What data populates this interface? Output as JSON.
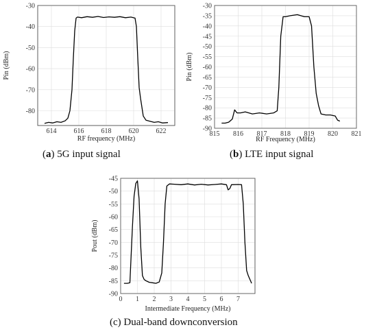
{
  "chart_data": [
    {
      "type": "line",
      "caption_id": "a",
      "caption_text": "5G input signal",
      "xlabel": "RF frequency (MHz)",
      "ylabel": "Pin (dBm)",
      "xlim": [
        613,
        623
      ],
      "ylim": [
        -87,
        -30
      ],
      "xticks": [
        614,
        616,
        618,
        620,
        622
      ],
      "yticks": [
        -80,
        -70,
        -60,
        -50,
        -40,
        -30
      ],
      "grid": true,
      "series": [
        {
          "x": [
            613.5,
            613.8,
            614.1,
            614.4,
            614.7,
            615.0,
            615.2,
            615.35,
            615.5,
            615.6,
            615.7,
            615.8,
            615.9,
            616.2,
            616.6,
            617.0,
            617.4,
            617.8,
            618.2,
            618.6,
            619.0,
            619.4,
            619.8,
            620.1,
            620.2,
            620.3,
            620.4,
            620.5,
            620.7,
            620.9,
            621.2,
            621.5,
            621.8,
            622.1,
            622.5
          ],
          "y": [
            -86,
            -85.5,
            -85.8,
            -85.2,
            -85.5,
            -84.8,
            -83.5,
            -80,
            -70,
            -55,
            -42,
            -36,
            -35.5,
            -35.8,
            -35.3,
            -35.6,
            -35.2,
            -35.7,
            -35.4,
            -35.6,
            -35.3,
            -35.8,
            -35.5,
            -36,
            -40,
            -55,
            -69,
            -74,
            -82.5,
            -84.5,
            -85,
            -85.5,
            -85.2,
            -85.8,
            -85.6
          ]
        }
      ]
    },
    {
      "type": "line",
      "caption_id": "b",
      "caption_text": "LTE input signal",
      "xlabel": "RF Frequency (MHz)",
      "ylabel": "Pin (dBm)",
      "xlim": [
        815,
        821
      ],
      "ylim": [
        -90,
        -30
      ],
      "xticks": [
        815,
        816,
        817,
        818,
        819,
        820,
        821
      ],
      "yticks": [
        -90,
        -85,
        -80,
        -75,
        -70,
        -65,
        -60,
        -55,
        -50,
        -45,
        -40,
        -35,
        -30
      ],
      "grid": true,
      "series": [
        {
          "x": [
            815.3,
            815.45,
            815.6,
            815.75,
            815.85,
            815.95,
            816.1,
            816.3,
            816.6,
            816.9,
            817.2,
            817.5,
            817.65,
            817.72,
            817.8,
            817.9,
            818.0,
            818.2,
            818.5,
            818.8,
            819.0,
            819.1,
            819.2,
            819.3,
            819.4,
            819.5,
            819.7,
            819.9,
            820.1,
            820.2,
            820.3
          ],
          "y": [
            -87.5,
            -87.5,
            -87,
            -85.5,
            -81,
            -82.5,
            -82.5,
            -82,
            -83,
            -82.5,
            -83,
            -82.5,
            -81.5,
            -70,
            -45,
            -35.5,
            -35.5,
            -35,
            -34.5,
            -35.5,
            -35.5,
            -40,
            -60,
            -73,
            -79,
            -83,
            -83.5,
            -83.5,
            -84,
            -86,
            -86.5
          ]
        }
      ]
    },
    {
      "type": "line",
      "caption_id": "c",
      "caption_text": "Dual-band downconversion",
      "xlabel": "Intermediate Frequency (MHz)",
      "ylabel": "Pout (dBm)",
      "xlim": [
        0,
        8
      ],
      "ylim": [
        -90,
        -45
      ],
      "xticks": [
        0,
        1,
        2,
        3,
        4,
        5,
        6,
        7
      ],
      "yticks": [
        -90,
        -85,
        -80,
        -75,
        -70,
        -65,
        -60,
        -55,
        -50,
        -45
      ],
      "grid": true,
      "series": [
        {
          "x": [
            0.2,
            0.4,
            0.55,
            0.7,
            0.8,
            0.9,
            1.0,
            1.1,
            1.2,
            1.3,
            1.4,
            1.5,
            1.7,
            1.9,
            2.1,
            2.3,
            2.45,
            2.55,
            2.65,
            2.75,
            2.9,
            3.2,
            3.6,
            4.0,
            4.4,
            4.8,
            5.2,
            5.6,
            6.0,
            6.3,
            6.4,
            6.5,
            6.6,
            7.0,
            7.2,
            7.3,
            7.4,
            7.5,
            7.6,
            7.8
          ],
          "y": [
            -86,
            -86,
            -85.8,
            -64,
            -52,
            -47,
            -46,
            -53,
            -72,
            -83,
            -84.5,
            -85,
            -85.6,
            -85.8,
            -86,
            -85.5,
            -82,
            -70,
            -55,
            -48,
            -47.2,
            -47.3,
            -47.5,
            -47.2,
            -47.6,
            -47.3,
            -47.6,
            -47.4,
            -47.2,
            -47.5,
            -49.5,
            -49,
            -47.5,
            -47.4,
            -47.5,
            -55,
            -70,
            -81,
            -83,
            -86
          ]
        }
      ]
    }
  ]
}
